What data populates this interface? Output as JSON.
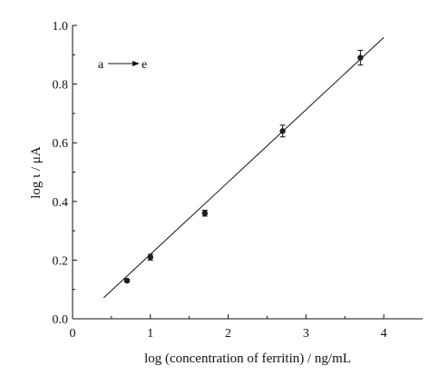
{
  "chart_data": {
    "type": "scatter",
    "title": "",
    "xlabel": "log (concentration of ferritin) / ng/mL",
    "ylabel": "log ι / μA",
    "xlim": [
      0,
      4.5
    ],
    "ylim": [
      0,
      1.0
    ],
    "x_ticks": [
      "0",
      "1",
      "2",
      "3",
      "4"
    ],
    "y_ticks": [
      "0.0",
      "0.2",
      "0.4",
      "0.6",
      "0.8",
      "1.0"
    ],
    "grid": false,
    "legend": "none",
    "series": [
      {
        "points": [
          {
            "x": 0.7,
            "y": 0.13,
            "err": 0.005
          },
          {
            "x": 1.0,
            "y": 0.21,
            "err": 0.01
          },
          {
            "x": 1.7,
            "y": 0.36,
            "err": 0.01
          },
          {
            "x": 2.7,
            "y": 0.64,
            "err": 0.02
          },
          {
            "x": 3.7,
            "y": 0.89,
            "err": 0.025
          }
        ]
      }
    ],
    "fit_line": {
      "x_start": 0.4,
      "x_end": 4.0,
      "slope": 0.2465,
      "intercept": -0.0269
    },
    "annotation": {
      "from": "a",
      "to": "e"
    },
    "colors": {
      "axis": "#111111",
      "marker": "#2a1a1a",
      "line": "#111111"
    }
  }
}
